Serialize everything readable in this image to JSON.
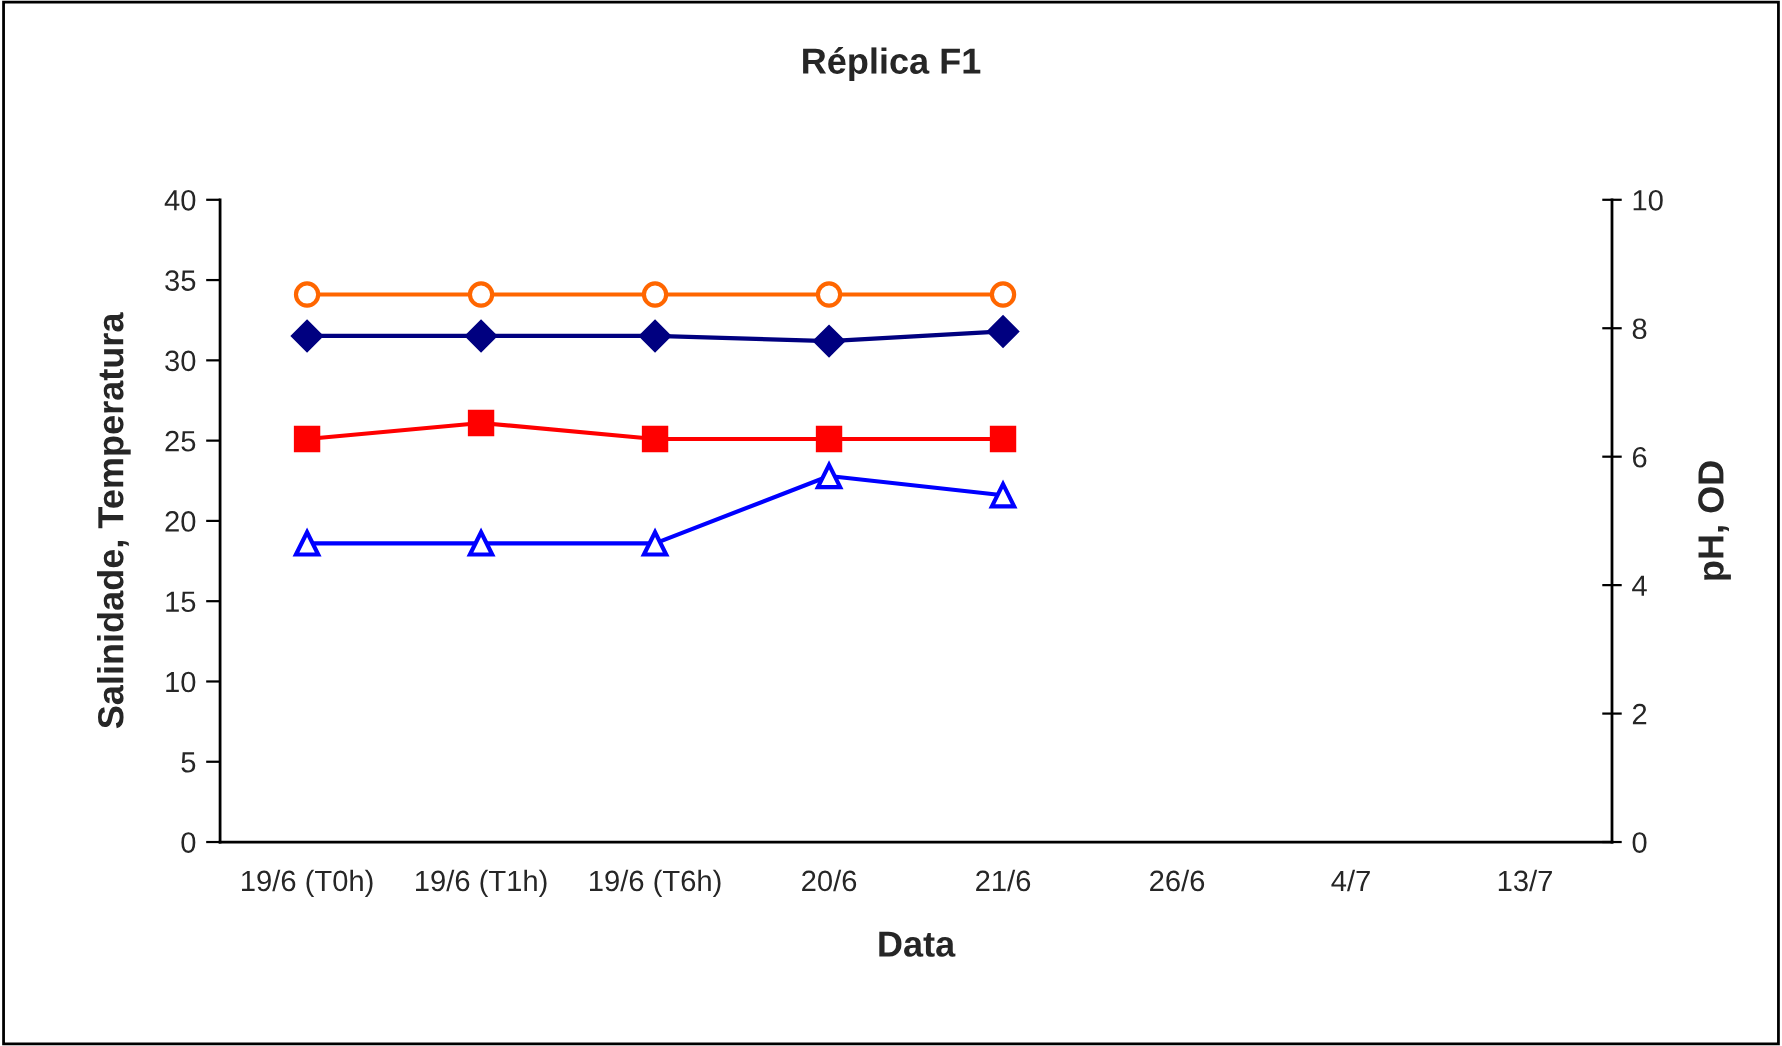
{
  "chart_data": {
    "type": "line",
    "title": "Réplica F1",
    "xlabel": "Data",
    "ylabel": "Salinidade, Temperatura",
    "y2label": "pH, OD",
    "categories": [
      "19/6 (T0h)",
      "19/6 (T1h)",
      "19/6 (T6h)",
      "20/6",
      "21/6",
      "26/6",
      "4/7",
      "13/7"
    ],
    "series": [
      {
        "color": "#ff6600",
        "marker": "circle",
        "values": [
          34.1,
          34.1,
          34.1,
          34.1,
          34.1,
          null,
          null,
          null
        ]
      },
      {
        "color": "#000080",
        "marker": "diamond",
        "axis": "y2",
        "values": [
          7.88,
          7.88,
          7.88,
          7.8,
          7.95,
          null,
          null,
          null
        ]
      },
      {
        "color": "#ff0000",
        "marker": "square",
        "values": [
          25.1,
          26.1,
          25.1,
          25.1,
          25.1,
          null,
          null,
          null
        ]
      },
      {
        "color": "#0000ff",
        "marker": "triangle",
        "axis": "y2",
        "values": [
          4.65,
          4.65,
          4.65,
          5.7,
          5.4,
          null,
          null,
          null
        ]
      }
    ],
    "ylim": [
      0,
      40
    ],
    "yticks": [
      0,
      5,
      10,
      15,
      20,
      25,
      30,
      35,
      40
    ],
    "y2lim": [
      0,
      10
    ],
    "y2ticks": [
      0,
      2,
      4,
      6,
      8,
      10
    ],
    "grid": false,
    "legend": false
  }
}
